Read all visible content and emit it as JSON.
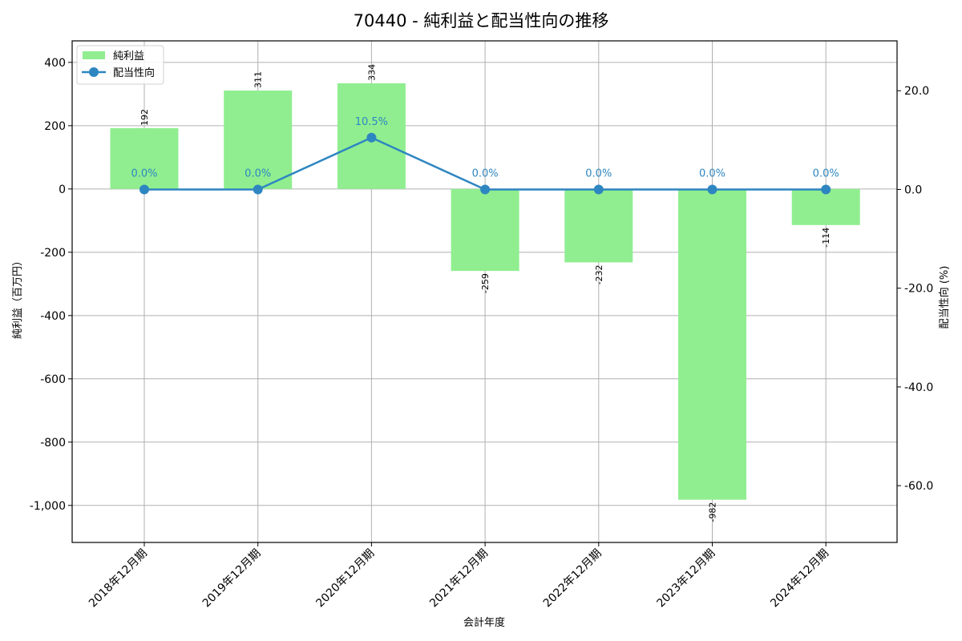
{
  "title": "70440 - 純利益と配当性向の推移",
  "colors": {
    "bar": "#90ee90",
    "line": "#2e86c1",
    "grid": "#b0b0b0",
    "axis": "#000000"
  },
  "legend": {
    "items": [
      {
        "label": "純利益",
        "type": "bar"
      },
      {
        "label": "配当性向",
        "type": "line"
      }
    ]
  },
  "chart_data": {
    "type": "bar+line",
    "title": "70440 - 純利益と配当性向の推移",
    "xlabel": "会計年度",
    "ylabel": "純利益（百万円）",
    "y2label": "配当性向 (%)",
    "categories": [
      "2018年12月期",
      "2019年12月期",
      "2020年12月期",
      "2021年12月期",
      "2022年12月期",
      "2023年12月期",
      "2024年12月期"
    ],
    "series": [
      {
        "name": "純利益",
        "type": "bar",
        "axis": "left",
        "values": [
          192,
          311,
          334,
          -259,
          -232,
          -982,
          -114
        ],
        "labels": [
          "192",
          "311",
          "334",
          "-259",
          "-232",
          "-982",
          "-114"
        ]
      },
      {
        "name": "配当性向",
        "type": "line",
        "axis": "right",
        "values": [
          0.0,
          0.0,
          10.5,
          0.0,
          0.0,
          0.0,
          0.0
        ],
        "labels": [
          "0.0%",
          "0.0%",
          "10.5%",
          "0.0%",
          "0.0%",
          "0.0%",
          "0.0%"
        ]
      }
    ],
    "ylim": [
      -1117,
      468
    ],
    "y2lim": [
      -71.5,
      30.1
    ],
    "yticks": [
      400,
      200,
      0,
      -200,
      -400,
      -600,
      -800,
      -1000
    ],
    "ytick_labels": [
      "400",
      "200",
      "0",
      "-200",
      "-400",
      "-600",
      "-800",
      "-1,000"
    ],
    "y2ticks": [
      20,
      0,
      -20,
      -40,
      -60
    ],
    "y2tick_labels": [
      "20.0",
      "0.0",
      "-20.0",
      "-40.0",
      "-60.0"
    ],
    "grid": true,
    "legend_position": "upper left"
  }
}
